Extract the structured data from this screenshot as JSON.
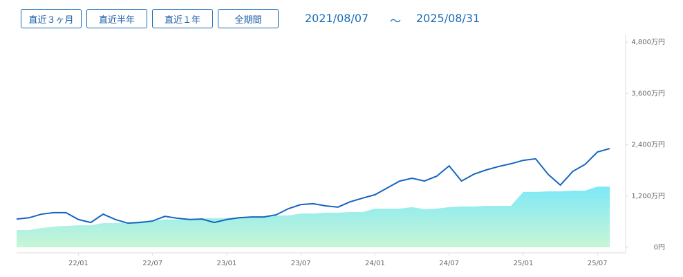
{
  "controls": {
    "buttons": [
      "直近３ヶ月",
      "直近半年",
      "直近１年",
      "全期間"
    ],
    "date_from": "2021/08/07",
    "separator": "〜",
    "date_to": "2025/08/31"
  },
  "chart_data": {
    "type": "line",
    "x": [
      "2021-08",
      "2021-09",
      "2021-10",
      "2021-11",
      "2021-12",
      "2022-01",
      "2022-02",
      "2022-03",
      "2022-04",
      "2022-05",
      "2022-06",
      "2022-07",
      "2022-08",
      "2022-09",
      "2022-10",
      "2022-11",
      "2022-12",
      "2023-01",
      "2023-02",
      "2023-03",
      "2023-04",
      "2023-05",
      "2023-06",
      "2023-07",
      "2023-08",
      "2023-09",
      "2023-10",
      "2023-11",
      "2023-12",
      "2024-01",
      "2024-02",
      "2024-03",
      "2024-04",
      "2024-05",
      "2024-06",
      "2024-07",
      "2024-08",
      "2024-09",
      "2024-10",
      "2024-11",
      "2024-12",
      "2025-01",
      "2025-02",
      "2025-03",
      "2025-04",
      "2025-05",
      "2025-06",
      "2025-07",
      "2025-08"
    ],
    "series": [
      {
        "type": "area",
        "gradient": [
          "#7ee8f7",
          "#c8f6d6"
        ],
        "values": [
          405,
          405,
          450,
          485,
          500,
          515,
          515,
          565,
          565,
          580,
          615,
          615,
          650,
          650,
          660,
          680,
          680,
          680,
          710,
          710,
          725,
          745,
          745,
          790,
          790,
          810,
          810,
          825,
          825,
          905,
          905,
          905,
          940,
          890,
          905,
          940,
          955,
          955,
          970,
          970,
          970,
          1295,
          1295,
          1310,
          1310,
          1325,
          1325,
          1420,
          1420
        ]
      },
      {
        "type": "line",
        "color": "#1565c0",
        "values": [
          660,
          690,
          775,
          810,
          810,
          650,
          580,
          775,
          650,
          565,
          580,
          615,
          725,
          680,
          650,
          660,
          580,
          650,
          690,
          710,
          710,
          760,
          905,
          1000,
          1020,
          970,
          940,
          1065,
          1150,
          1230,
          1390,
          1550,
          1615,
          1550,
          1665,
          1905,
          1550,
          1710,
          1810,
          1890,
          1955,
          2035,
          2070,
          1710,
          1455,
          1775,
          1940,
          2230,
          2310
        ]
      }
    ],
    "xlim": [
      "2021-08",
      "2025-09"
    ],
    "xticks": [
      {
        "value": "2022-01",
        "label": "22/01"
      },
      {
        "value": "2022-07",
        "label": "22/07"
      },
      {
        "value": "2023-01",
        "label": "23/01"
      },
      {
        "value": "2023-07",
        "label": "23/07"
      },
      {
        "value": "2024-01",
        "label": "24/01"
      },
      {
        "value": "2024-07",
        "label": "24/07"
      },
      {
        "value": "2025-01",
        "label": "25/01"
      },
      {
        "value": "2025-07",
        "label": "25/07"
      }
    ],
    "ylim": [
      0,
      4800
    ],
    "yticks": [
      {
        "value": 0,
        "label": "0円"
      },
      {
        "value": 1200,
        "label": "1,200万円"
      },
      {
        "value": 2400,
        "label": "2,400万円"
      },
      {
        "value": 3600,
        "label": "3,600万円"
      },
      {
        "value": 4800,
        "label": "4,800万円"
      }
    ]
  }
}
